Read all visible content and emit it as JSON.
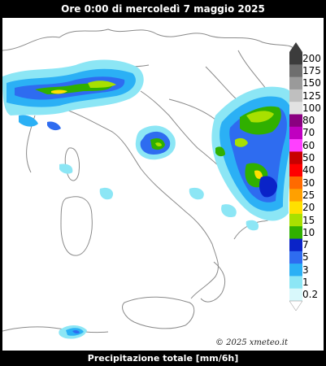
{
  "header": {
    "title": "Ore 0:00 di mercoledì 7 maggio 2025"
  },
  "footer": {
    "caption": "Precipitazione totale [mm/6h]"
  },
  "map": {
    "copyright": "© 2025 xmeteo.it"
  },
  "legend": {
    "unit": "mm/6h",
    "steps": [
      {
        "label": "200",
        "color": "#3c3c3c"
      },
      {
        "label": "175",
        "color": "#6e6e6e"
      },
      {
        "label": "150",
        "color": "#9a9a9a"
      },
      {
        "label": "125",
        "color": "#bfbfbf"
      },
      {
        "label": "100",
        "color": "#e2e2e2"
      },
      {
        "label": "80",
        "color": "#8a0080"
      },
      {
        "label": "70",
        "color": "#c000c0"
      },
      {
        "label": "60",
        "color": "#ff40ff"
      },
      {
        "label": "50",
        "color": "#c80000"
      },
      {
        "label": "40",
        "color": "#ff0000"
      },
      {
        "label": "30",
        "color": "#ff6a00"
      },
      {
        "label": "25",
        "color": "#ffa000"
      },
      {
        "label": "20",
        "color": "#ffe000"
      },
      {
        "label": "15",
        "color": "#a8e000"
      },
      {
        "label": "10",
        "color": "#30b000"
      },
      {
        "label": "7",
        "color": "#0a23c8"
      },
      {
        "label": "5",
        "color": "#2e6cf0"
      },
      {
        "label": "3",
        "color": "#2bb0f5"
      },
      {
        "label": "1",
        "color": "#8ce6f5"
      },
      {
        "label": "0.2",
        "color": "#d8f8fb"
      }
    ]
  }
}
